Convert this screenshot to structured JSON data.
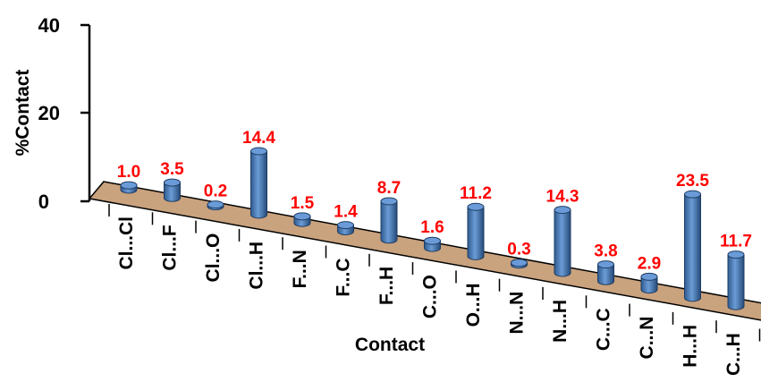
{
  "chart_data": {
    "type": "bar",
    "style": "3d-cylinder",
    "categories": [
      "Cl...Cl",
      "Cl...F",
      "Cl...O",
      "Cl...H",
      "F...N",
      "F...C",
      "F...H",
      "C...O",
      "O...H",
      "N...N",
      "N...H",
      "C...C",
      "C...N",
      "H...H",
      "C...H"
    ],
    "values": [
      1.0,
      3.5,
      0.2,
      14.4,
      1.5,
      1.4,
      8.7,
      1.6,
      11.2,
      0.3,
      14.3,
      3.8,
      2.9,
      23.5,
      11.7
    ],
    "value_labels": [
      "1.0",
      "3.5",
      "0.2",
      "14.4",
      "1.5",
      "1.4",
      "8.7",
      "1.6",
      "11.2",
      "0.3",
      "14.3",
      "3.8",
      "2.9",
      "23.5",
      "11.7"
    ],
    "xlabel": "Contact",
    "ylabel": "%Contact",
    "ylim": [
      0,
      40
    ],
    "yticks": [
      "0",
      "20",
      "40"
    ],
    "grid": false,
    "colors": {
      "bar": "#4f81bd",
      "bar_top": "#6a9bd8",
      "floor": "#c9a27e",
      "data_label": "#ff0000"
    }
  }
}
